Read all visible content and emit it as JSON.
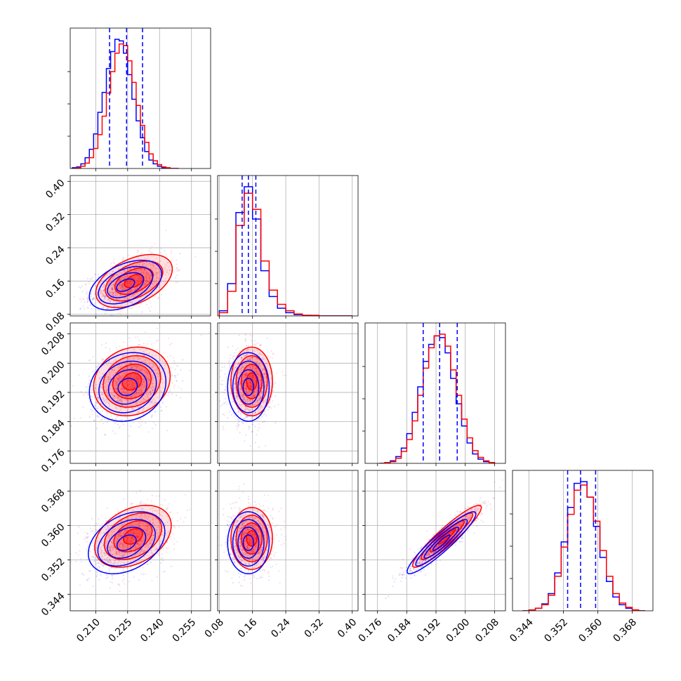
{
  "chart_data": {
    "type": "corner",
    "grid": true,
    "series": [
      {
        "color": "#0000ff"
      },
      {
        "color": "#ff0000"
      }
    ],
    "params": [
      {
        "range": [
          0.198,
          0.264
        ],
        "ticks": [
          0.21,
          0.225,
          0.24,
          0.255
        ],
        "tick_labels": [
          "0.210",
          "0.225",
          "0.240",
          "0.255"
        ]
      },
      {
        "range": [
          0.076,
          0.414
        ],
        "ticks": [
          0.08,
          0.16,
          0.24,
          0.32,
          0.4
        ],
        "tick_labels": [
          "0.08",
          "0.16",
          "0.24",
          "0.32",
          "0.40"
        ]
      },
      {
        "range": [
          0.1726,
          0.211
        ],
        "ticks": [
          0.176,
          0.184,
          0.192,
          0.2,
          0.208
        ],
        "tick_labels": [
          "0.176",
          "0.184",
          "0.192",
          "0.200",
          "0.208"
        ]
      },
      {
        "range": [
          0.3402,
          0.3728
        ],
        "ticks": [
          0.344,
          0.352,
          0.36,
          0.368
        ],
        "tick_labels": [
          "0.344",
          "0.352",
          "0.360",
          "0.368"
        ]
      }
    ],
    "quantile_lines_blue": [
      [
        0.2165,
        0.2245,
        0.232
      ],
      [
        0.135,
        0.15,
        0.168
      ],
      [
        0.1885,
        0.193,
        0.1978
      ],
      [
        0.353,
        0.356,
        0.3595
      ]
    ],
    "histograms": [
      {
        "blue": {
          "edges": [
            0.199,
            0.201,
            0.203,
            0.205,
            0.207,
            0.209,
            0.211,
            0.213,
            0.215,
            0.217,
            0.219,
            0.221,
            0.223,
            0.225,
            0.227,
            0.229,
            0.231,
            0.233,
            0.235,
            0.237,
            0.239,
            0.241,
            0.243,
            0.245,
            0.247,
            0.249
          ],
          "counts": [
            1,
            2,
            6,
            14,
            25,
            45,
            73,
            99,
            130,
            152,
            168,
            166,
            150,
            122,
            90,
            62,
            40,
            22,
            11,
            6,
            3,
            1,
            0,
            0,
            0
          ]
        },
        "red": {
          "edges": [
            0.199,
            0.201,
            0.203,
            0.205,
            0.207,
            0.209,
            0.211,
            0.213,
            0.215,
            0.217,
            0.219,
            0.221,
            0.223,
            0.225,
            0.227,
            0.229,
            0.231,
            0.233,
            0.235,
            0.237,
            0.239,
            0.241,
            0.243,
            0.245,
            0.247,
            0.249
          ],
          "counts": [
            0,
            1,
            3,
            7,
            14,
            26,
            44,
            68,
            98,
            126,
            150,
            162,
            160,
            140,
            112,
            82,
            56,
            34,
            19,
            10,
            5,
            2,
            1,
            0,
            0
          ]
        }
      },
      {
        "blue": {
          "edges": [
            0.08,
            0.1,
            0.12,
            0.14,
            0.16,
            0.18,
            0.2,
            0.22,
            0.24,
            0.26,
            0.28,
            0.3,
            0.32,
            0.34,
            0.36,
            0.38,
            0.4
          ],
          "counts": [
            8,
            50,
            160,
            200,
            150,
            70,
            30,
            12,
            5,
            2,
            1,
            0,
            0,
            0,
            0,
            0
          ]
        },
        "red": {
          "edges": [
            0.08,
            0.1,
            0.12,
            0.14,
            0.16,
            0.18,
            0.2,
            0.22,
            0.24,
            0.26,
            0.28,
            0.3,
            0.32,
            0.34,
            0.36,
            0.38,
            0.4
          ],
          "counts": [
            5,
            38,
            140,
            190,
            165,
            85,
            40,
            18,
            8,
            3,
            1,
            1,
            0,
            0,
            0,
            0
          ]
        }
      },
      {
        "blue": {
          "edges": [
            0.1765,
            0.178,
            0.1795,
            0.181,
            0.1825,
            0.184,
            0.1855,
            0.187,
            0.1885,
            0.19,
            0.1915,
            0.193,
            0.1945,
            0.196,
            0.1975,
            0.199,
            0.2005,
            0.202,
            0.2035,
            0.205,
            0.2065,
            0.208
          ],
          "counts": [
            0,
            1,
            3,
            8,
            18,
            35,
            60,
            90,
            120,
            140,
            150,
            148,
            130,
            100,
            70,
            44,
            24,
            11,
            5,
            2,
            1
          ]
        },
        "red": {
          "edges": [
            0.1765,
            0.178,
            0.1795,
            0.181,
            0.1825,
            0.184,
            0.1855,
            0.187,
            0.1885,
            0.19,
            0.1915,
            0.193,
            0.1945,
            0.196,
            0.1975,
            0.199,
            0.2005,
            0.202,
            0.2035,
            0.205,
            0.2065,
            0.208
          ],
          "counts": [
            0,
            1,
            2,
            6,
            14,
            28,
            50,
            80,
            112,
            136,
            150,
            152,
            138,
            110,
            80,
            52,
            30,
            15,
            7,
            3,
            1
          ]
        }
      },
      {
        "blue": {
          "edges": [
            0.3425,
            0.344,
            0.3455,
            0.347,
            0.3485,
            0.35,
            0.3515,
            0.353,
            0.3545,
            0.356,
            0.3575,
            0.359,
            0.3605,
            0.362,
            0.3635,
            0.365,
            0.3665,
            0.368,
            0.3695,
            0.371
          ],
          "counts": [
            0,
            1,
            3,
            8,
            20,
            44,
            80,
            120,
            148,
            150,
            132,
            98,
            62,
            34,
            16,
            7,
            3,
            1,
            0
          ]
        },
        "red": {
          "edges": [
            0.3425,
            0.344,
            0.3455,
            0.347,
            0.3485,
            0.35,
            0.3515,
            0.353,
            0.3545,
            0.356,
            0.3575,
            0.359,
            0.3605,
            0.362,
            0.3635,
            0.365,
            0.3665,
            0.368,
            0.3695,
            0.371
          ],
          "counts": [
            0,
            1,
            3,
            7,
            18,
            40,
            74,
            112,
            140,
            146,
            132,
            104,
            70,
            40,
            20,
            9,
            4,
            1,
            0
          ]
        }
      }
    ],
    "pairs": [
      {
        "row": 1,
        "col": 0,
        "blue": {
          "mean": [
            0.224,
            0.15
          ],
          "sd": [
            0.0085,
            0.03
          ],
          "rho": 0.45
        },
        "red": {
          "mean": [
            0.228,
            0.16
          ],
          "sd": [
            0.009,
            0.032
          ],
          "rho": 0.45
        }
      },
      {
        "row": 2,
        "col": 0,
        "blue": {
          "mean": [
            0.225,
            0.1935
          ],
          "sd": [
            0.009,
            0.0047
          ],
          "rho": 0.15
        },
        "red": {
          "mean": [
            0.227,
            0.195
          ],
          "sd": [
            0.009,
            0.0047
          ],
          "rho": 0.15
        }
      },
      {
        "row": 2,
        "col": 1,
        "blue": {
          "mean": [
            0.15,
            0.1935
          ],
          "sd": [
            0.025,
            0.0047
          ],
          "rho": 0.0
        },
        "red": {
          "mean": [
            0.158,
            0.195
          ],
          "sd": [
            0.025,
            0.0047
          ],
          "rho": 0.0
        }
      },
      {
        "row": 3,
        "col": 0,
        "blue": {
          "mean": [
            0.2245,
            0.356
          ],
          "sd": [
            0.009,
            0.0036
          ],
          "rho": 0.35
        },
        "red": {
          "mean": [
            0.2275,
            0.3575
          ],
          "sd": [
            0.009,
            0.0036
          ],
          "rho": 0.35
        }
      },
      {
        "row": 3,
        "col": 1,
        "blue": {
          "mean": [
            0.15,
            0.356
          ],
          "sd": [
            0.025,
            0.0036
          ],
          "rho": 0.0
        },
        "red": {
          "mean": [
            0.158,
            0.357
          ],
          "sd": [
            0.025,
            0.0036
          ],
          "rho": 0.0
        }
      },
      {
        "row": 3,
        "col": 2,
        "blue": {
          "mean": [
            0.1935,
            0.356
          ],
          "sd": [
            0.0047,
            0.0036
          ],
          "rho": 0.93
        },
        "red": {
          "mean": [
            0.195,
            0.3575
          ],
          "sd": [
            0.0047,
            0.0036
          ],
          "rho": 0.93
        }
      }
    ]
  }
}
